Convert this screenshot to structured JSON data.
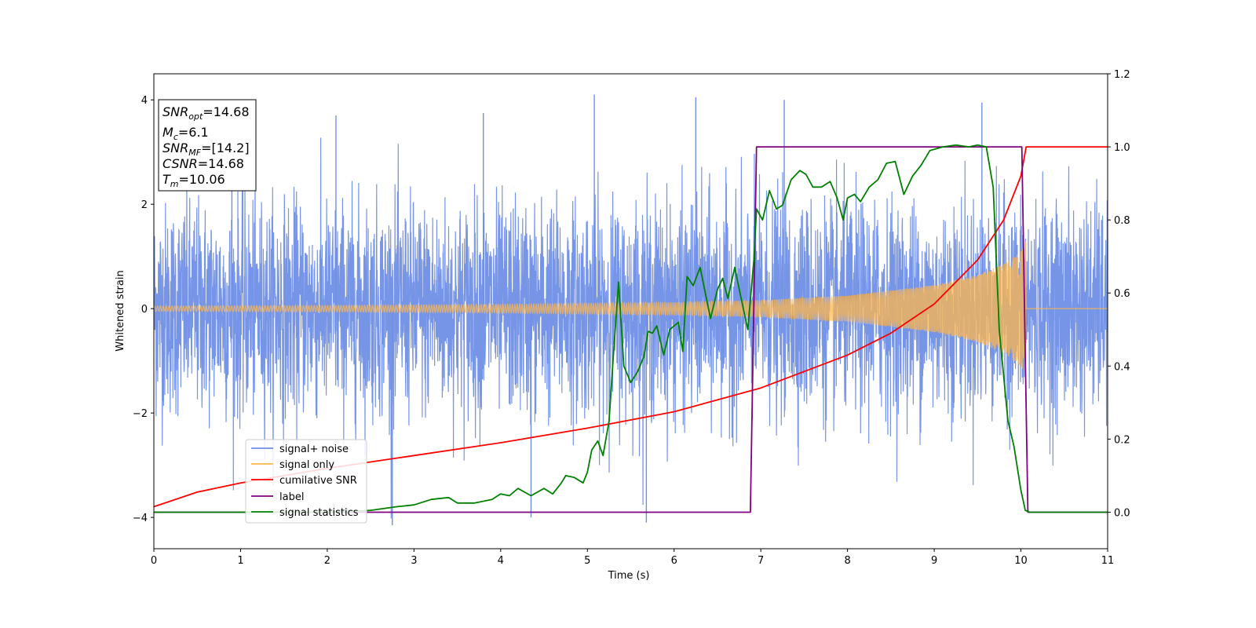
{
  "chart_data": {
    "type": "line",
    "xlabel": "Time (s)",
    "ylabel_left": "Whitened strain",
    "ylabel_right": "",
    "xlim": [
      0,
      11
    ],
    "ylim_left": [
      -4.6,
      4.5
    ],
    "ylim_right": [
      -0.1,
      1.2
    ],
    "xticks": [
      "0",
      "1",
      "2",
      "3",
      "4",
      "5",
      "6",
      "7",
      "8",
      "9",
      "10",
      "11"
    ],
    "yticks_left": [
      "−4",
      "−2",
      "0",
      "2",
      "4"
    ],
    "yticks_right": [
      "0.0",
      "0.2",
      "0.4",
      "0.6",
      "0.8",
      "1.0",
      "1.2"
    ],
    "grid": false,
    "legend_position": "lower-left",
    "annotation": {
      "snr_opt": {
        "main": "SNR",
        "sub": "opt",
        "rest": "=14.68"
      },
      "mc": {
        "main": "M",
        "sub": "c",
        "rest": "=6.1"
      },
      "snr_mf": {
        "main": "SNR",
        "sub": "MF",
        "rest": "=[14.2]"
      },
      "csnr": {
        "main": "CSNR",
        "rest": "=14.68"
      },
      "tm": {
        "main": "T",
        "sub": "m",
        "rest": "=10.06"
      }
    },
    "series": [
      {
        "name": "signal+ noise",
        "color": "#6f8fe6",
        "axis": "left",
        "description_values": "noise band approx ±1.4, spikes to ±4; t 0–11 s",
        "noise_peaks": [
          [
            5.08,
            4.1
          ],
          [
            6.25,
            4.05
          ],
          [
            7.27,
            4.0
          ],
          [
            9.55,
            3.95
          ],
          [
            2.75,
            -4.15
          ],
          [
            5.68,
            -4.1
          ],
          [
            4.35,
            -4.0
          ],
          [
            0.9,
            3.8
          ],
          [
            2.1,
            3.7
          ],
          [
            3.8,
            3.75
          ]
        ]
      },
      {
        "name": "signal only",
        "color": "#ffb74d",
        "axis": "left",
        "amplitude": [
          [
            0,
            0.05
          ],
          [
            2,
            0.06
          ],
          [
            4,
            0.08
          ],
          [
            6,
            0.12
          ],
          [
            7,
            0.16
          ],
          [
            8,
            0.25
          ],
          [
            9,
            0.45
          ],
          [
            9.5,
            0.65
          ],
          [
            9.8,
            0.85
          ],
          [
            10.0,
            1.1
          ],
          [
            10.06,
            1.4
          ],
          [
            10.1,
            0.0
          ],
          [
            11,
            0.0
          ]
        ]
      },
      {
        "name": "cumilative SNR",
        "color": "#ff0000",
        "axis": "right",
        "points": [
          [
            0,
            0.015
          ],
          [
            0.5,
            0.055
          ],
          [
            1,
            0.08
          ],
          [
            2,
            0.12
          ],
          [
            3,
            0.155
          ],
          [
            4,
            0.19
          ],
          [
            5,
            0.23
          ],
          [
            6,
            0.275
          ],
          [
            7,
            0.34
          ],
          [
            8,
            0.43
          ],
          [
            8.5,
            0.49
          ],
          [
            9,
            0.57
          ],
          [
            9.5,
            0.69
          ],
          [
            9.8,
            0.8
          ],
          [
            10.0,
            0.92
          ],
          [
            10.06,
            1.0
          ],
          [
            11,
            1.0
          ]
        ]
      },
      {
        "name": "label",
        "color": "#800080",
        "axis": "right",
        "points": [
          [
            0,
            0.0
          ],
          [
            6.88,
            0.0
          ],
          [
            6.95,
            1.0
          ],
          [
            10.01,
            1.0
          ],
          [
            10.08,
            0.0
          ],
          [
            11,
            0.0
          ]
        ]
      },
      {
        "name": "signal statistics",
        "color": "#008000",
        "axis": "right",
        "points": [
          [
            0,
            0.0
          ],
          [
            1,
            0.0
          ],
          [
            2,
            0.0
          ],
          [
            2.5,
            0.005
          ],
          [
            2.8,
            0.015
          ],
          [
            3.0,
            0.02
          ],
          [
            3.2,
            0.035
          ],
          [
            3.4,
            0.04
          ],
          [
            3.5,
            0.025
          ],
          [
            3.7,
            0.025
          ],
          [
            3.9,
            0.035
          ],
          [
            4.0,
            0.05
          ],
          [
            4.1,
            0.045
          ],
          [
            4.2,
            0.065
          ],
          [
            4.35,
            0.045
          ],
          [
            4.5,
            0.065
          ],
          [
            4.6,
            0.05
          ],
          [
            4.7,
            0.08
          ],
          [
            4.75,
            0.1
          ],
          [
            4.85,
            0.095
          ],
          [
            4.95,
            0.08
          ],
          [
            5.0,
            0.11
          ],
          [
            5.05,
            0.17
          ],
          [
            5.12,
            0.195
          ],
          [
            5.18,
            0.155
          ],
          [
            5.25,
            0.25
          ],
          [
            5.3,
            0.43
          ],
          [
            5.36,
            0.63
          ],
          [
            5.42,
            0.4
          ],
          [
            5.5,
            0.355
          ],
          [
            5.58,
            0.385
          ],
          [
            5.65,
            0.425
          ],
          [
            5.7,
            0.495
          ],
          [
            5.75,
            0.49
          ],
          [
            5.8,
            0.51
          ],
          [
            5.88,
            0.43
          ],
          [
            5.95,
            0.5
          ],
          [
            6.05,
            0.52
          ],
          [
            6.1,
            0.44
          ],
          [
            6.15,
            0.645
          ],
          [
            6.22,
            0.62
          ],
          [
            6.3,
            0.67
          ],
          [
            6.36,
            0.6
          ],
          [
            6.42,
            0.53
          ],
          [
            6.5,
            0.61
          ],
          [
            6.56,
            0.64
          ],
          [
            6.62,
            0.585
          ],
          [
            6.7,
            0.67
          ],
          [
            6.76,
            0.6
          ],
          [
            6.85,
            0.5
          ],
          [
            6.92,
            0.69
          ],
          [
            6.95,
            0.83
          ],
          [
            7.02,
            0.8
          ],
          [
            7.1,
            0.88
          ],
          [
            7.18,
            0.83
          ],
          [
            7.25,
            0.84
          ],
          [
            7.35,
            0.91
          ],
          [
            7.45,
            0.935
          ],
          [
            7.52,
            0.925
          ],
          [
            7.6,
            0.89
          ],
          [
            7.7,
            0.89
          ],
          [
            7.8,
            0.905
          ],
          [
            7.88,
            0.86
          ],
          [
            7.95,
            0.8
          ],
          [
            8.0,
            0.86
          ],
          [
            8.08,
            0.87
          ],
          [
            8.15,
            0.85
          ],
          [
            8.25,
            0.89
          ],
          [
            8.35,
            0.91
          ],
          [
            8.45,
            0.955
          ],
          [
            8.55,
            0.96
          ],
          [
            8.65,
            0.87
          ],
          [
            8.75,
            0.92
          ],
          [
            8.85,
            0.95
          ],
          [
            8.95,
            0.99
          ],
          [
            9.1,
            1.0
          ],
          [
            9.25,
            1.005
          ],
          [
            9.4,
            1.0
          ],
          [
            9.5,
            1.005
          ],
          [
            9.6,
            1.0
          ],
          [
            9.68,
            0.89
          ],
          [
            9.75,
            0.5
          ],
          [
            9.85,
            0.25
          ],
          [
            9.92,
            0.18
          ],
          [
            10.0,
            0.06
          ],
          [
            10.05,
            0.005
          ],
          [
            10.1,
            0.0
          ],
          [
            11,
            0.0
          ]
        ]
      }
    ]
  }
}
